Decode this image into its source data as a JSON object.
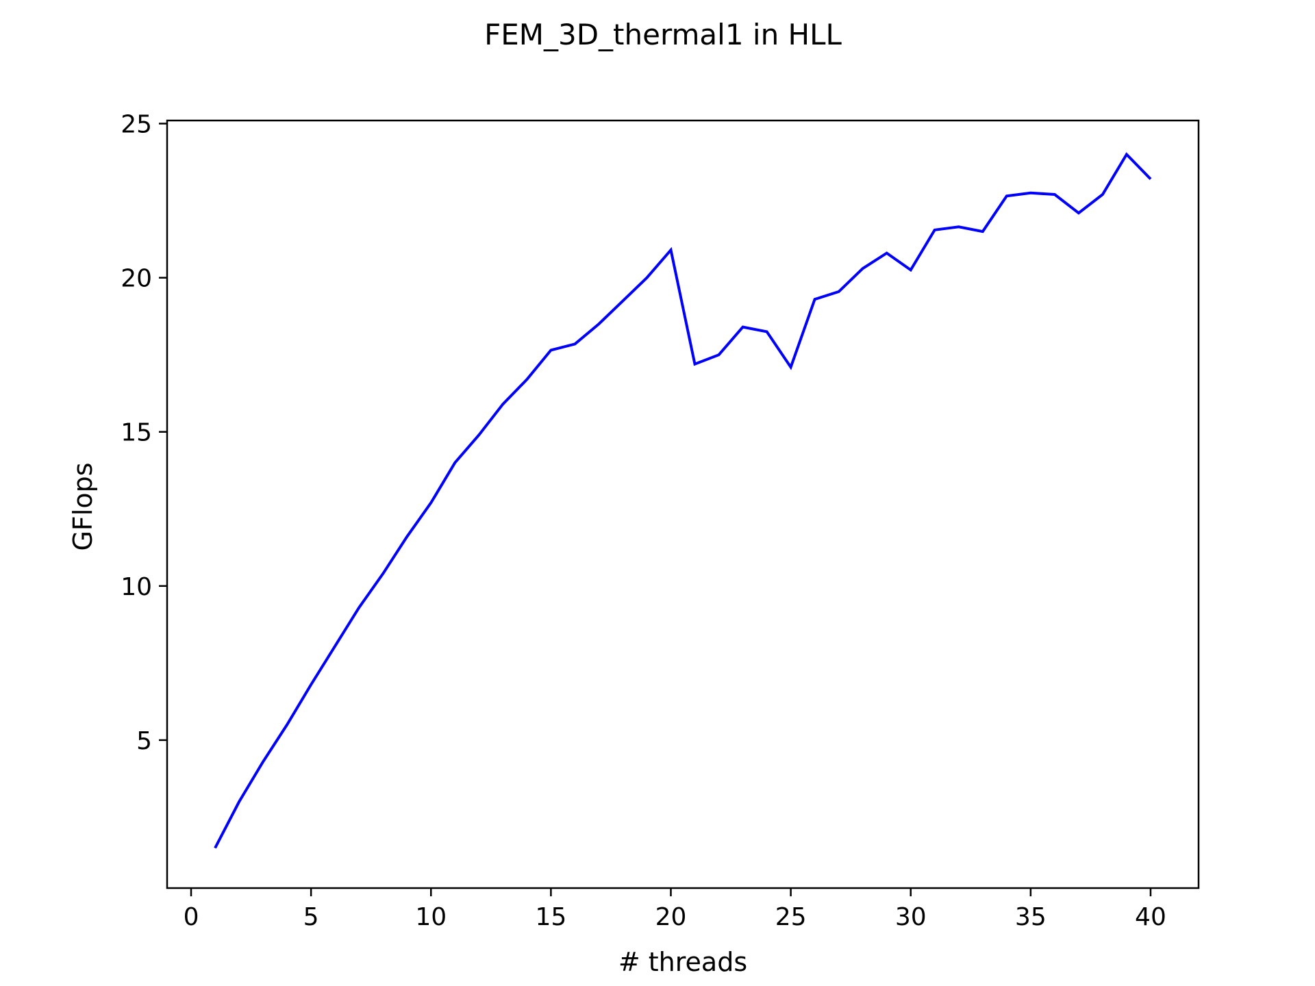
{
  "chart_data": {
    "type": "line",
    "title": "FEM_3D_thermal1 in HLL",
    "xlabel": "# threads",
    "ylabel": "GFlops",
    "xlim": [
      -1,
      42
    ],
    "ylim": [
      0.2,
      25.1
    ],
    "xticks": [
      0,
      5,
      10,
      15,
      20,
      25,
      30,
      35,
      40
    ],
    "yticks": [
      5,
      10,
      15,
      20,
      25
    ],
    "grid": false,
    "series": [
      {
        "color": "#0000ff",
        "x": [
          1,
          2,
          3,
          4,
          5,
          6,
          7,
          8,
          9,
          10,
          11,
          12,
          13,
          14,
          15,
          16,
          17,
          18,
          19,
          20,
          21,
          22,
          23,
          24,
          25,
          26,
          27,
          28,
          29,
          30,
          31,
          32,
          33,
          34,
          35,
          36,
          37,
          38,
          39,
          40
        ],
        "y": [
          1.5,
          3.0,
          4.3,
          5.5,
          6.8,
          8.05,
          9.3,
          10.4,
          11.6,
          12.7,
          14.0,
          14.9,
          15.9,
          16.7,
          17.65,
          17.85,
          18.5,
          19.25,
          20.0,
          20.9,
          17.2,
          17.5,
          18.4,
          18.25,
          17.1,
          19.3,
          19.55,
          20.3,
          20.8,
          20.25,
          21.55,
          21.65,
          21.5,
          22.65,
          22.75,
          22.7,
          22.1,
          22.7,
          24.0,
          23.2
        ]
      }
    ]
  }
}
